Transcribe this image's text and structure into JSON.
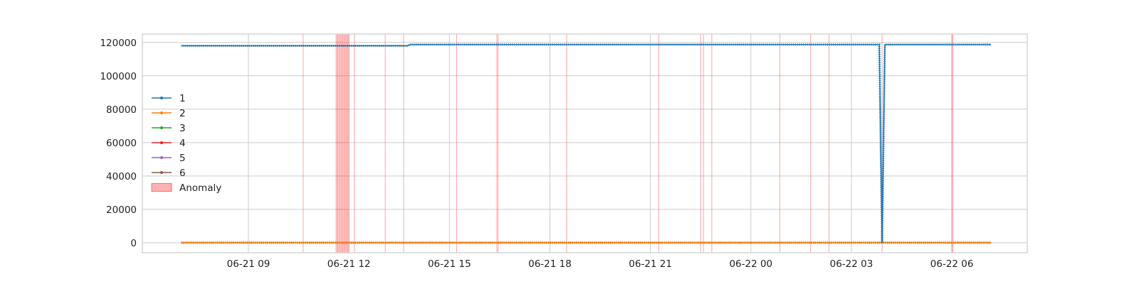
{
  "chart_data": {
    "type": "line",
    "title": "",
    "xlabel": "",
    "ylabel": "",
    "x_range": [
      "2021-06-21 07:00",
      "2021-06-22 07:10"
    ],
    "xlim": [
      "2021-06-21 05:50",
      "2021-06-22 08:15"
    ],
    "xticks": [
      {
        "t": "2021-06-21 09:00",
        "label": "06-21 09"
      },
      {
        "t": "2021-06-21 12:00",
        "label": "06-21 12"
      },
      {
        "t": "2021-06-21 15:00",
        "label": "06-21 15"
      },
      {
        "t": "2021-06-21 18:00",
        "label": "06-21 18"
      },
      {
        "t": "2021-06-21 21:00",
        "label": "06-21 21"
      },
      {
        "t": "2021-06-22 00:00",
        "label": "06-22 00"
      },
      {
        "t": "2021-06-22 03:00",
        "label": "06-22 03"
      },
      {
        "t": "2021-06-22 06:00",
        "label": "06-22 06"
      }
    ],
    "ylim": [
      -6000,
      125000
    ],
    "yticks": [
      0,
      20000,
      40000,
      60000,
      80000,
      100000,
      120000
    ],
    "grid": true,
    "legend_position": "center-left",
    "series": [
      {
        "name": "1",
        "color": "#1f77b4",
        "marker": "dot",
        "points": [
          [
            "2021-06-21 07:00",
            118000
          ],
          [
            "2021-06-21 13:45",
            118000
          ],
          [
            "2021-06-21 13:50",
            118700
          ],
          [
            "2021-06-22 03:50",
            118700
          ],
          [
            "2021-06-22 03:55",
            0
          ],
          [
            "2021-06-22 04:00",
            118700
          ],
          [
            "2021-06-22 07:10",
            118700
          ]
        ]
      },
      {
        "name": "2",
        "color": "#ff7f0e",
        "marker": "dot",
        "points": [
          [
            "2021-06-21 07:00",
            0
          ],
          [
            "2021-06-22 07:10",
            0
          ]
        ]
      },
      {
        "name": "3",
        "color": "#2ca02c",
        "marker": "dot",
        "points": [
          [
            "2021-06-21 07:00",
            0
          ],
          [
            "2021-06-22 07:10",
            0
          ]
        ]
      },
      {
        "name": "4",
        "color": "#d62728",
        "marker": "dot",
        "points": [
          [
            "2021-06-21 07:00",
            0
          ],
          [
            "2021-06-22 07:10",
            0
          ]
        ]
      },
      {
        "name": "5",
        "color": "#9467bd",
        "marker": "dot",
        "points": [
          [
            "2021-06-21 07:00",
            0
          ],
          [
            "2021-06-22 07:10",
            0
          ]
        ]
      },
      {
        "name": "6",
        "color": "#8c564b",
        "marker": "dot",
        "points": [
          [
            "2021-06-21 07:00",
            0
          ],
          [
            "2021-06-22 07:10",
            0
          ]
        ]
      }
    ],
    "anomaly": {
      "label": "Anomaly",
      "color": "#ff0000",
      "times": [
        "2021-06-21 10:38",
        "2021-06-21 11:37",
        "2021-06-21 11:40",
        "2021-06-21 11:43",
        "2021-06-21 11:46",
        "2021-06-21 11:49",
        "2021-06-21 11:52",
        "2021-06-21 11:55",
        "2021-06-21 11:58",
        "2021-06-21 12:10",
        "2021-06-21 13:05",
        "2021-06-21 13:38",
        "2021-06-21 15:13",
        "2021-06-21 16:25",
        "2021-06-21 16:27",
        "2021-06-21 18:30",
        "2021-06-21 21:15",
        "2021-06-21 22:30",
        "2021-06-21 22:35",
        "2021-06-21 22:50",
        "2021-06-22 00:52",
        "2021-06-22 01:47",
        "2021-06-22 02:20",
        "2021-06-22 03:55",
        "2021-06-22 06:00",
        "2021-06-22 06:02"
      ],
      "ranges": [
        [
          "2021-06-21 11:37",
          "2021-06-21 12:01"
        ]
      ]
    }
  }
}
